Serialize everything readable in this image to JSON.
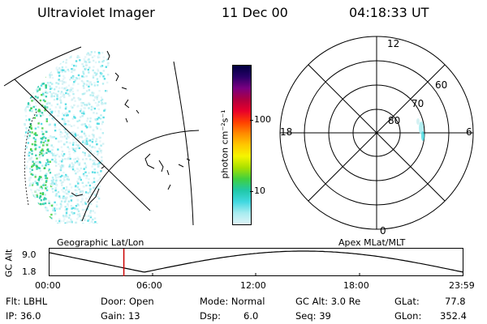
{
  "header": {
    "instrument": "Ultraviolet Imager",
    "date": "11 Dec 00",
    "time": "04:18:33 UT"
  },
  "map_caption": "Geographic Lat/Lon",
  "polar": {
    "caption": "Apex MLat/MLT",
    "mlt_labels": [
      "12",
      "18",
      "6",
      "0"
    ],
    "lat_labels": [
      "60",
      "70",
      "80"
    ]
  },
  "colorbar": {
    "label": "photon cm⁻²s⁻¹",
    "ticks": [
      "100",
      "10"
    ],
    "colors": [
      "#000040",
      "#2a0068",
      "#7a0080",
      "#b00040",
      "#e8002a",
      "#ff4000",
      "#ff8c00",
      "#ffc800",
      "#f5f500",
      "#a8e000",
      "#40d040",
      "#20c8a8",
      "#40d8e0",
      "#a8ecf0",
      "#e0f4f8"
    ]
  },
  "altitude_plot": {
    "ylabel": "GC Alt",
    "ymax": "9.0",
    "ymin": "1.8",
    "xticks": [
      "00:00",
      "06:00",
      "12:00",
      "18:00",
      "23:59"
    ],
    "current_time_hours": 4.31,
    "marker_color": "#cc0000"
  },
  "status": {
    "flt": "Flt: LBHL",
    "ip": "IP: 36.0",
    "door": "Door: Open",
    "gain": "Gain: 13",
    "mode": "Mode: Normal",
    "dsp_label": "Dsp:",
    "dsp_value": "6.0",
    "gcalt": "GC Alt: 3.0 Re",
    "seq": "Seq: 39",
    "glat": "GLat:",
    "glat_value": "77.8",
    "glon": "GLon:",
    "glon_value": "352.4"
  }
}
